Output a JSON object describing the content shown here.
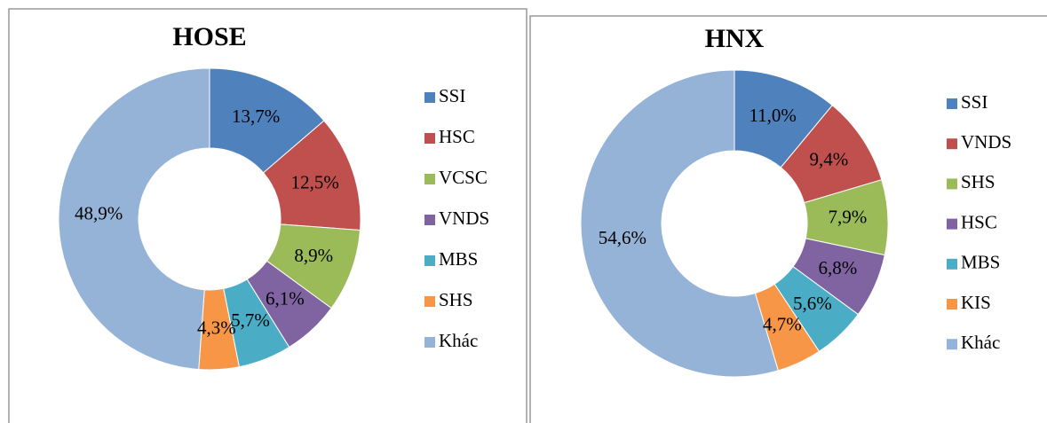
{
  "chart_data": [
    {
      "type": "pie",
      "title": "HOSE",
      "categories": [
        "SSI",
        "HSC",
        "VCSC",
        "VNDS",
        "MBS",
        "SHS",
        "Khác"
      ],
      "values": [
        13.7,
        12.5,
        8.9,
        6.1,
        5.7,
        4.3,
        48.9
      ],
      "value_labels": [
        "13,7%",
        "12,5%",
        "8,9%",
        "6,1%",
        "5,7%",
        "4,3%",
        "48,9%"
      ],
      "colors": [
        "#4f81bd",
        "#c0504d",
        "#9bbb59",
        "#8064a2",
        "#4bacc6",
        "#f79646",
        "#95b3d7"
      ]
    },
    {
      "type": "pie",
      "title": "HNX",
      "categories": [
        "SSI",
        "VNDS",
        "SHS",
        "HSC",
        "MBS",
        "KIS",
        "Khác"
      ],
      "values": [
        11.0,
        9.4,
        7.9,
        6.8,
        5.6,
        4.7,
        54.6
      ],
      "value_labels": [
        "11,0%",
        "9,4%",
        "7,9%",
        "6,8%",
        "5,6%",
        "4,7%",
        "54,6%"
      ],
      "colors": [
        "#4f81bd",
        "#c0504d",
        "#9bbb59",
        "#8064a2",
        "#4bacc6",
        "#f79646",
        "#95b3d7"
      ]
    }
  ]
}
